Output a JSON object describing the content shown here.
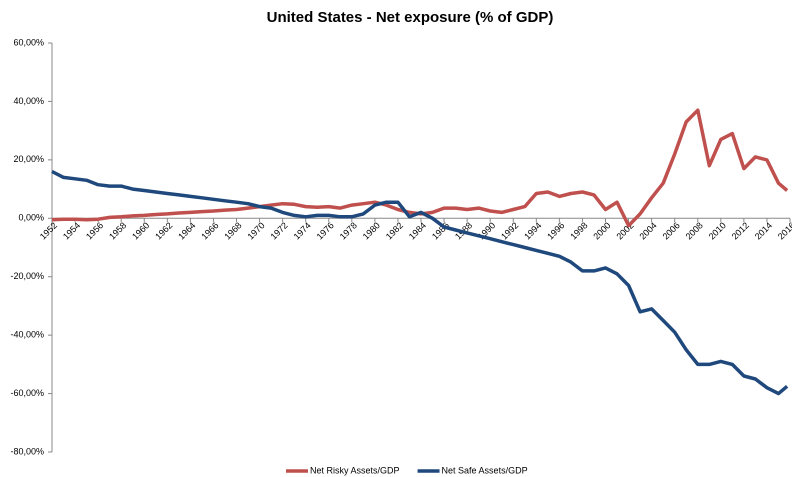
{
  "chart_data": {
    "type": "line",
    "title": "United States - Net exposure (% of GDP)",
    "x": [
      1952,
      1953,
      1954,
      1955,
      1956,
      1957,
      1958,
      1959,
      1960,
      1961,
      1962,
      1963,
      1964,
      1965,
      1966,
      1967,
      1968,
      1969,
      1970,
      1971,
      1972,
      1973,
      1974,
      1975,
      1976,
      1977,
      1978,
      1979,
      1980,
      1981,
      1982,
      1983,
      1984,
      1985,
      1986,
      1987,
      1988,
      1989,
      1990,
      1991,
      1992,
      1993,
      1994,
      1995,
      1996,
      1997,
      1998,
      1999,
      2000,
      2001,
      2002,
      2003,
      2004,
      2005,
      2006,
      2007,
      2008,
      2009,
      2010,
      2011,
      2012,
      2013,
      2014,
      2015,
      2015.75
    ],
    "series": [
      {
        "name": "Net Risky Assets/GDP",
        "color": "#c0504d",
        "values": [
          -0.5,
          -0.3,
          -0.3,
          -0.5,
          -0.3,
          0.3,
          0.5,
          0.8,
          1.0,
          1.3,
          1.5,
          1.8,
          2.0,
          2.3,
          2.5,
          2.8,
          3.0,
          3.5,
          4.0,
          4.5,
          5.0,
          4.8,
          4.0,
          3.8,
          4.0,
          3.5,
          4.5,
          5.0,
          5.5,
          4.5,
          3.0,
          2.0,
          1.5,
          2.0,
          3.5,
          3.5,
          3.0,
          3.5,
          2.5,
          2.0,
          3.0,
          4.0,
          8.5,
          9.0,
          7.5,
          8.5,
          9.0,
          8.0,
          3.0,
          5.5,
          -2.5,
          1.5,
          7.0,
          12.0,
          22.0,
          33.0,
          37.0,
          18.0,
          27.0,
          29.0,
          17.0,
          21.0,
          20.0,
          12.0,
          9.5
        ]
      },
      {
        "name": "Net Safe Assets/GDP",
        "color": "#1f497d",
        "values": [
          16,
          14,
          13.5,
          13,
          11.5,
          11,
          11,
          10,
          9.5,
          9,
          8.5,
          8,
          7.5,
          7,
          6.5,
          6,
          5.5,
          5,
          4,
          3.5,
          2,
          1,
          0.5,
          1,
          1,
          0.5,
          0.5,
          1.5,
          4.5,
          5.5,
          5.5,
          0.5,
          2,
          0,
          -3,
          -4,
          -5,
          -6,
          -7,
          -8,
          -9,
          -10,
          -11,
          -12,
          -13,
          -15,
          -18,
          -18,
          -17,
          -19,
          -23,
          -32,
          -31,
          -35,
          -39,
          -45,
          -50,
          -50,
          -49,
          -50,
          -54,
          -55,
          -58,
          -60,
          -57.5
        ]
      }
    ],
    "xlim": [
      1952,
      2016
    ],
    "xticks": [
      1952,
      1954,
      1956,
      1958,
      1960,
      1962,
      1964,
      1966,
      1968,
      1970,
      1972,
      1974,
      1976,
      1978,
      1980,
      1982,
      1984,
      1986,
      1988,
      1990,
      1992,
      1994,
      1996,
      1998,
      2000,
      2002,
      2004,
      2006,
      2008,
      2010,
      2012,
      2014,
      2016
    ],
    "ylim": [
      -80,
      60
    ],
    "yticks": [
      {
        "value": -80,
        "label": "-80,00%"
      },
      {
        "value": -60,
        "label": "-60,00%"
      },
      {
        "value": -40,
        "label": "-40,00%"
      },
      {
        "value": -20,
        "label": "-20,00%"
      },
      {
        "value": 0,
        "label": "0,00%"
      },
      {
        "value": 20,
        "label": "20,00%"
      },
      {
        "value": 40,
        "label": "40,00%"
      },
      {
        "value": 60,
        "label": "60,00%"
      }
    ]
  }
}
